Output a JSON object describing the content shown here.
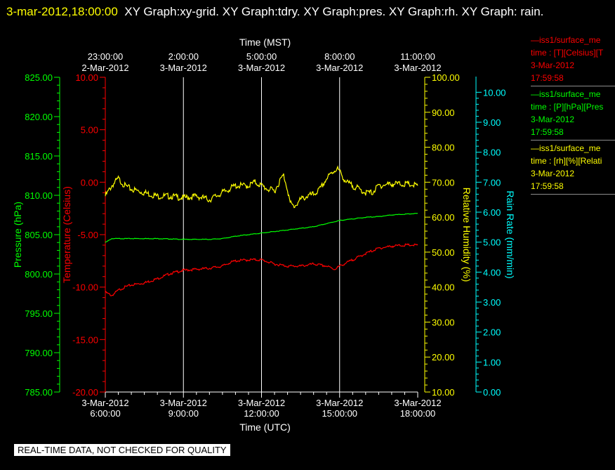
{
  "header": {
    "timestamp": "3-mar-2012,18:00:00",
    "title": "XY Graph:xy-grid.  XY Graph:tdry.  XY Graph:pres.  XY Graph:rh.  XY Graph: rain."
  },
  "legend": [
    {
      "name": "—iss1/surface_me",
      "vars": "time : [T][Celsius][T",
      "date": "3-Mar-2012",
      "time": "17:59:58",
      "color": "#ff0000"
    },
    {
      "name": "—iss1/surface_me",
      "vars": "time : [P][hPa][Pres",
      "date": "3-Mar-2012",
      "time": "17:59:58",
      "color": "#00ff00"
    },
    {
      "name": "—iss1/surface_me",
      "vars": "time : [rh][%][Relati",
      "date": "3-Mar-2012",
      "time": "17:59:58",
      "color": "#ffff00"
    }
  ],
  "note": "REAL-TIME DATA, NOT CHECKED FOR QUALITY",
  "chart_data": {
    "type": "line",
    "title": "",
    "x_axis_top": {
      "label": "Time (MST)",
      "ticks": [
        {
          "time": "23:00:00",
          "date": "2-Mar-2012"
        },
        {
          "time": "2:00:00",
          "date": "3-Mar-2012"
        },
        {
          "time": "5:00:00",
          "date": "3-Mar-2012"
        },
        {
          "time": "8:00:00",
          "date": "3-Mar-2012"
        },
        {
          "time": "11:00:00",
          "date": "3-Mar-2012"
        }
      ]
    },
    "x_axis_bottom": {
      "label": "Time (UTC)",
      "ticks": [
        {
          "date": "3-Mar-2012",
          "time": "6:00:00"
        },
        {
          "date": "3-Mar-2012",
          "time": "9:00:00"
        },
        {
          "date": "3-Mar-2012",
          "time": "12:00:00"
        },
        {
          "date": "3-Mar-2012",
          "time": "15:00:00"
        },
        {
          "date": "3-Mar-2012",
          "time": "18:00:00"
        }
      ]
    },
    "x_range_utc_hours": [
      6,
      18
    ],
    "grid": "vertical",
    "y_axes": [
      {
        "id": "pres",
        "label": "Pressure (hPa)",
        "color": "#00ff00",
        "range": [
          785,
          825
        ],
        "ticks": [
          "785.00",
          "790.00",
          "795.00",
          "800.00",
          "805.00",
          "810.00",
          "815.00",
          "820.00",
          "825.00"
        ]
      },
      {
        "id": "temp",
        "label": "Temperature (Celsius)",
        "color": "#ff0000",
        "range": [
          -20,
          10
        ],
        "ticks": [
          "-20.00",
          "-15.00",
          "-10.00",
          "-5.00",
          "0.00",
          "5.00",
          "10.00"
        ]
      },
      {
        "id": "rh",
        "label": "Relative Humidity (%)",
        "color": "#ffff00",
        "range": [
          10,
          100
        ],
        "ticks": [
          "10.00",
          "20.00",
          "30.00",
          "40.00",
          "50.00",
          "60.00",
          "70.00",
          "80.00",
          "90.00",
          "100.00"
        ]
      },
      {
        "id": "rain",
        "label": "Rain Rate (mm/min)",
        "color": "#00ffff",
        "range": [
          0,
          10.5
        ],
        "ticks": [
          "0.00",
          "1.00",
          "2.00",
          "3.00",
          "4.00",
          "5.00",
          "6.00",
          "7.00",
          "8.00",
          "9.00",
          "10.00"
        ]
      }
    ],
    "series": [
      {
        "name": "Relative Humidity",
        "axis": "rh",
        "color": "#ffff00",
        "x": [
          6.0,
          6.25,
          6.5,
          6.75,
          7.0,
          7.5,
          8.0,
          8.5,
          9.0,
          9.5,
          10.0,
          10.5,
          10.75,
          11.0,
          11.5,
          11.75,
          12.0,
          12.25,
          12.5,
          12.75,
          12.85,
          13.0,
          13.1,
          13.25,
          13.5,
          13.75,
          14.0,
          14.25,
          14.5,
          14.75,
          14.9,
          15.0,
          15.25,
          15.5,
          15.75,
          16.0,
          16.25,
          16.5,
          17.0,
          17.5,
          18.0
        ],
        "y": [
          66,
          69,
          71,
          69,
          68,
          67,
          66,
          66,
          65.5,
          66,
          65,
          67,
          68,
          69,
          69,
          70,
          69,
          68,
          67.5,
          71,
          72,
          68,
          64,
          63,
          65,
          66,
          66.5,
          68,
          71,
          73,
          74,
          73,
          70,
          69,
          68,
          67,
          67,
          69,
          69.5,
          69.5,
          69
        ]
      },
      {
        "name": "Pressure",
        "axis": "pres",
        "color": "#00ff00",
        "x": [
          6.0,
          6.25,
          7.0,
          7.5,
          8.0,
          9.0,
          10.0,
          10.5,
          11.0,
          11.5,
          12.0,
          12.5,
          13.0,
          13.5,
          14.0,
          14.5,
          15.0,
          15.5,
          16.0,
          16.5,
          17.0,
          17.5,
          18.0
        ],
        "y": [
          804.0,
          804.5,
          804.5,
          804.5,
          804.5,
          804.4,
          804.4,
          804.5,
          804.8,
          805.0,
          805.2,
          805.4,
          805.6,
          805.8,
          806.0,
          806.4,
          806.8,
          807.0,
          807.2,
          807.3,
          807.5,
          807.6,
          807.7
        ]
      },
      {
        "name": "Temperature",
        "axis": "temp",
        "color": "#ff0000",
        "x": [
          6.0,
          6.25,
          6.5,
          6.75,
          7.0,
          7.5,
          8.0,
          8.5,
          9.0,
          9.5,
          10.0,
          10.5,
          10.75,
          11.0,
          11.5,
          12.0,
          12.5,
          13.0,
          13.5,
          14.0,
          14.5,
          14.8,
          15.0,
          15.5,
          16.0,
          16.5,
          17.0,
          17.5,
          18.0
        ],
        "y": [
          -10.5,
          -10.8,
          -10.3,
          -10.0,
          -9.8,
          -9.6,
          -9.2,
          -8.7,
          -8.4,
          -8.3,
          -8.2,
          -8.0,
          -7.7,
          -7.5,
          -7.4,
          -7.4,
          -7.8,
          -8.0,
          -8.0,
          -7.8,
          -8.0,
          -8.3,
          -8.0,
          -7.4,
          -6.8,
          -6.3,
          -6.1,
          -6.0,
          -6.0
        ]
      }
    ]
  }
}
